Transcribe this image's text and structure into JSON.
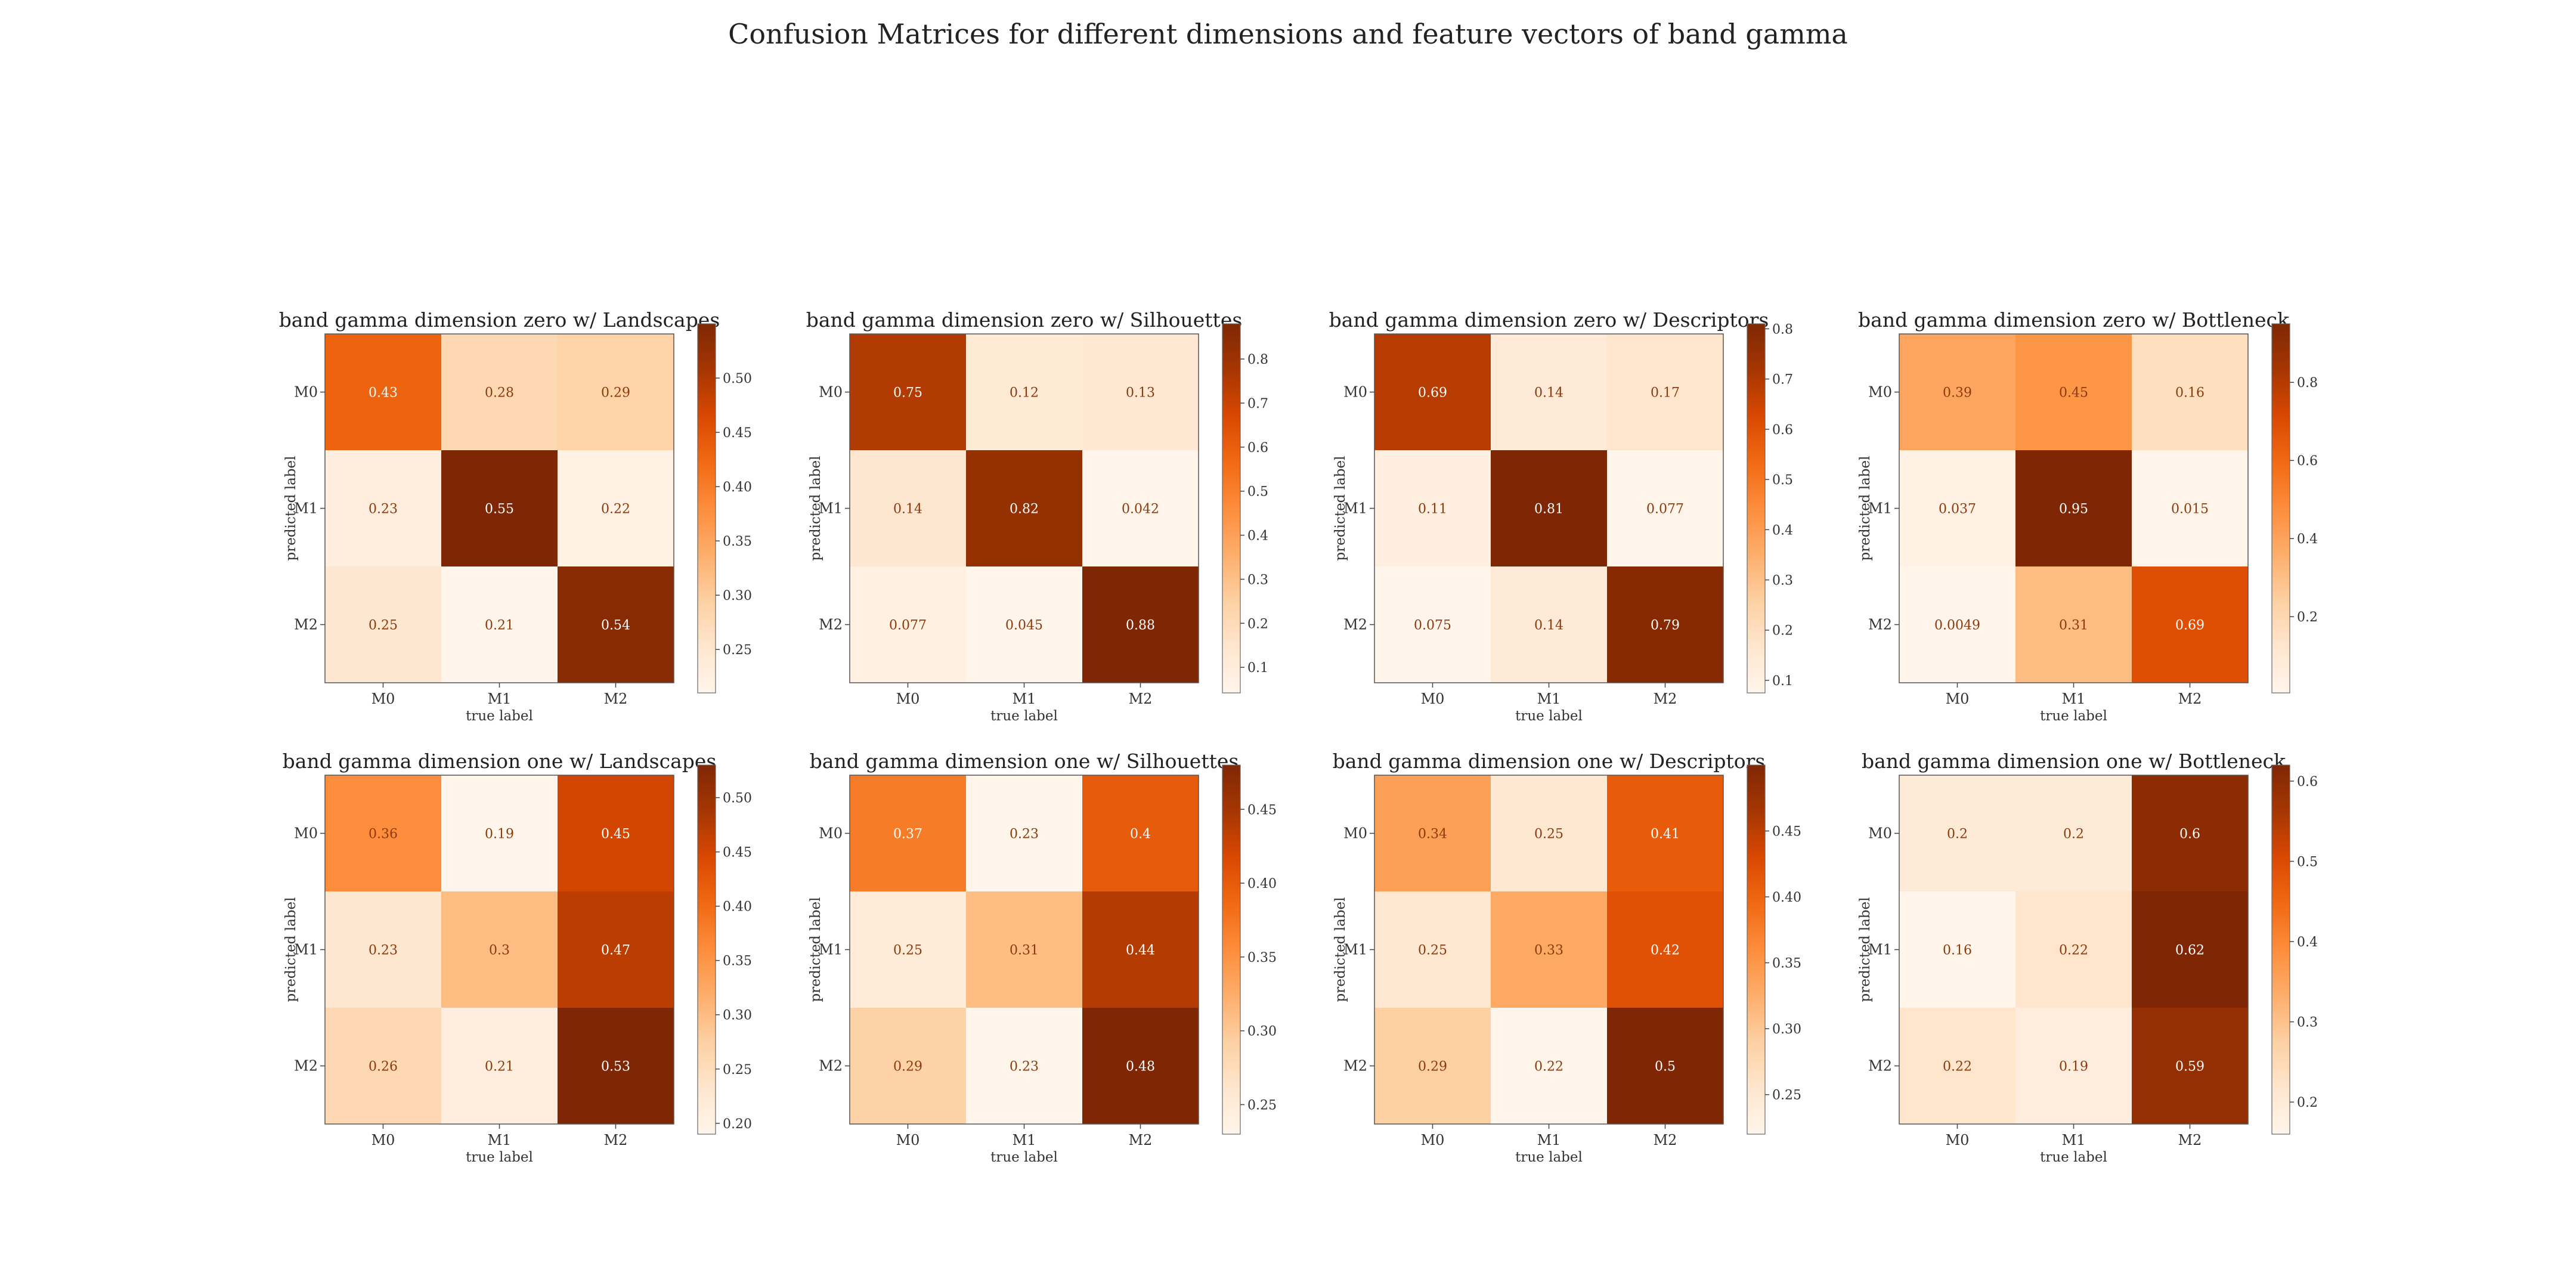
{
  "figure": {
    "suptitle": "Confusion Matrices for different dimensions and feature vectors of band gamma"
  },
  "chart_data": [
    {
      "type": "heatmap",
      "title": "band gamma dimension zero w/ Landscapes",
      "xlabel": "true label",
      "ylabel": "predicted label",
      "x_categories": [
        "M0",
        "M1",
        "M2"
      ],
      "y_categories": [
        "M0",
        "M1",
        "M2"
      ],
      "values": [
        [
          0.43,
          0.28,
          0.29
        ],
        [
          0.23,
          0.55,
          0.22
        ],
        [
          0.25,
          0.21,
          0.54
        ]
      ],
      "value_labels": [
        [
          "0.43",
          "0.28",
          "0.29"
        ],
        [
          "0.23",
          "0.55",
          "0.22"
        ],
        [
          "0.25",
          "0.21",
          "0.54"
        ]
      ],
      "colorbar": {
        "range": [
          0.21,
          0.55
        ],
        "ticks": [
          0.25,
          0.3,
          0.35,
          0.4,
          0.45,
          0.5
        ],
        "tick_labels": [
          "0.25",
          "0.30",
          "0.35",
          "0.40",
          "0.45",
          "0.50"
        ]
      }
    },
    {
      "type": "heatmap",
      "title": "band gamma dimension zero w/ Silhouettes",
      "xlabel": "true label",
      "ylabel": "predicted label",
      "x_categories": [
        "M0",
        "M1",
        "M2"
      ],
      "y_categories": [
        "M0",
        "M1",
        "M2"
      ],
      "values": [
        [
          0.75,
          0.12,
          0.13
        ],
        [
          0.14,
          0.82,
          0.042
        ],
        [
          0.077,
          0.045,
          0.88
        ]
      ],
      "value_labels": [
        [
          "0.75",
          "0.12",
          "0.13"
        ],
        [
          "0.14",
          "0.82",
          "0.042"
        ],
        [
          "0.077",
          "0.045",
          "0.88"
        ]
      ],
      "colorbar": {
        "range": [
          0.042,
          0.88
        ],
        "ticks": [
          0.1,
          0.2,
          0.3,
          0.4,
          0.5,
          0.6,
          0.7,
          0.8
        ],
        "tick_labels": [
          "0.1",
          "0.2",
          "0.3",
          "0.4",
          "0.5",
          "0.6",
          "0.7",
          "0.8"
        ]
      }
    },
    {
      "type": "heatmap",
      "title": "band gamma dimension zero w/ Descriptors",
      "xlabel": "true label",
      "ylabel": "predicted label",
      "x_categories": [
        "M0",
        "M1",
        "M2"
      ],
      "y_categories": [
        "M0",
        "M1",
        "M2"
      ],
      "values": [
        [
          0.69,
          0.14,
          0.17
        ],
        [
          0.11,
          0.81,
          0.077
        ],
        [
          0.075,
          0.14,
          0.79
        ]
      ],
      "value_labels": [
        [
          "0.69",
          "0.14",
          "0.17"
        ],
        [
          "0.11",
          "0.81",
          "0.077"
        ],
        [
          "0.075",
          "0.14",
          "0.79"
        ]
      ],
      "colorbar": {
        "range": [
          0.075,
          0.81
        ],
        "ticks": [
          0.1,
          0.2,
          0.3,
          0.4,
          0.5,
          0.6,
          0.7,
          0.8
        ],
        "tick_labels": [
          "0.1",
          "0.2",
          "0.3",
          "0.4",
          "0.5",
          "0.6",
          "0.7",
          "0.8"
        ]
      }
    },
    {
      "type": "heatmap",
      "title": "band gamma dimension zero w/ Bottleneck",
      "xlabel": "true label",
      "ylabel": "predicted label",
      "x_categories": [
        "M0",
        "M1",
        "M2"
      ],
      "y_categories": [
        "M0",
        "M1",
        "M2"
      ],
      "values": [
        [
          0.39,
          0.45,
          0.16
        ],
        [
          0.037,
          0.95,
          0.015
        ],
        [
          0.0049,
          0.31,
          0.69
        ]
      ],
      "value_labels": [
        [
          "0.39",
          "0.45",
          "0.16"
        ],
        [
          "0.037",
          "0.95",
          "0.015"
        ],
        [
          "0.0049",
          "0.31",
          "0.69"
        ]
      ],
      "colorbar": {
        "range": [
          0.0049,
          0.95
        ],
        "ticks": [
          0.2,
          0.4,
          0.6,
          0.8
        ],
        "tick_labels": [
          "0.2",
          "0.4",
          "0.6",
          "0.8"
        ]
      }
    },
    {
      "type": "heatmap",
      "title": "band gamma dimension one w/ Landscapes",
      "xlabel": "true label",
      "ylabel": "predicted label",
      "x_categories": [
        "M0",
        "M1",
        "M2"
      ],
      "y_categories": [
        "M0",
        "M1",
        "M2"
      ],
      "values": [
        [
          0.36,
          0.19,
          0.45
        ],
        [
          0.23,
          0.3,
          0.47
        ],
        [
          0.26,
          0.21,
          0.53
        ]
      ],
      "value_labels": [
        [
          "0.36",
          "0.19",
          "0.45"
        ],
        [
          "0.23",
          "0.3",
          "0.47"
        ],
        [
          "0.26",
          "0.21",
          "0.53"
        ]
      ],
      "colorbar": {
        "range": [
          0.19,
          0.53
        ],
        "ticks": [
          0.2,
          0.25,
          0.3,
          0.35,
          0.4,
          0.45,
          0.5
        ],
        "tick_labels": [
          "0.20",
          "0.25",
          "0.30",
          "0.35",
          "0.40",
          "0.45",
          "0.50"
        ]
      }
    },
    {
      "type": "heatmap",
      "title": "band gamma dimension one w/ Silhouettes",
      "xlabel": "true label",
      "ylabel": "predicted label",
      "x_categories": [
        "M0",
        "M1",
        "M2"
      ],
      "y_categories": [
        "M0",
        "M1",
        "M2"
      ],
      "values": [
        [
          0.37,
          0.23,
          0.4
        ],
        [
          0.25,
          0.31,
          0.44
        ],
        [
          0.29,
          0.23,
          0.48
        ]
      ],
      "value_labels": [
        [
          "0.37",
          "0.23",
          "0.4"
        ],
        [
          "0.25",
          "0.31",
          "0.44"
        ],
        [
          "0.29",
          "0.23",
          "0.48"
        ]
      ],
      "colorbar": {
        "range": [
          0.23,
          0.48
        ],
        "ticks": [
          0.25,
          0.3,
          0.35,
          0.4,
          0.45
        ],
        "tick_labels": [
          "0.25",
          "0.30",
          "0.35",
          "0.40",
          "0.45"
        ]
      }
    },
    {
      "type": "heatmap",
      "title": "band gamma dimension one w/ Descriptors",
      "xlabel": "true label",
      "ylabel": "predicted label",
      "x_categories": [
        "M0",
        "M1",
        "M2"
      ],
      "y_categories": [
        "M0",
        "M1",
        "M2"
      ],
      "values": [
        [
          0.34,
          0.25,
          0.41
        ],
        [
          0.25,
          0.33,
          0.42
        ],
        [
          0.29,
          0.22,
          0.5
        ]
      ],
      "value_labels": [
        [
          "0.34",
          "0.25",
          "0.41"
        ],
        [
          "0.25",
          "0.33",
          "0.42"
        ],
        [
          "0.29",
          "0.22",
          "0.5"
        ]
      ],
      "colorbar": {
        "range": [
          0.22,
          0.5
        ],
        "ticks": [
          0.25,
          0.3,
          0.35,
          0.4,
          0.45
        ],
        "tick_labels": [
          "0.25",
          "0.30",
          "0.35",
          "0.40",
          "0.45"
        ]
      }
    },
    {
      "type": "heatmap",
      "title": "band gamma dimension one w/ Bottleneck",
      "xlabel": "true label",
      "ylabel": "predicted label",
      "x_categories": [
        "M0",
        "M1",
        "M2"
      ],
      "y_categories": [
        "M0",
        "M1",
        "M2"
      ],
      "values": [
        [
          0.2,
          0.2,
          0.6
        ],
        [
          0.16,
          0.22,
          0.62
        ],
        [
          0.22,
          0.19,
          0.59
        ]
      ],
      "value_labels": [
        [
          "0.2",
          "0.2",
          "0.6"
        ],
        [
          "0.16",
          "0.22",
          "0.62"
        ],
        [
          "0.22",
          "0.19",
          "0.59"
        ]
      ],
      "colorbar": {
        "range": [
          0.16,
          0.62
        ],
        "ticks": [
          0.2,
          0.3,
          0.4,
          0.5,
          0.6
        ],
        "tick_labels": [
          "0.2",
          "0.3",
          "0.4",
          "0.5",
          "0.6"
        ]
      }
    }
  ]
}
